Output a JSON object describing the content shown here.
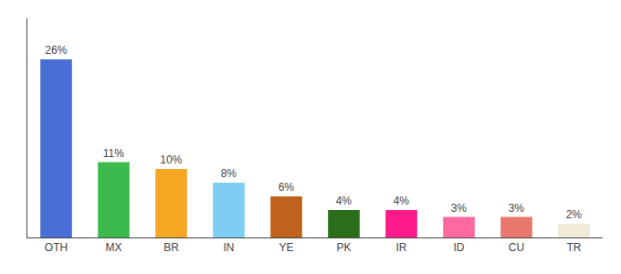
{
  "chart_data": {
    "type": "bar",
    "categories": [
      "OTH",
      "MX",
      "BR",
      "IN",
      "YE",
      "PK",
      "IR",
      "ID",
      "CU",
      "TR"
    ],
    "values": [
      26,
      11,
      10,
      8,
      6,
      4,
      4,
      3,
      3,
      2
    ],
    "value_labels": [
      "26%",
      "11%",
      "10%",
      "8%",
      "6%",
      "4%",
      "4%",
      "3%",
      "3%",
      "2%"
    ],
    "colors": [
      "#4a6fd4",
      "#3dba4e",
      "#f5a623",
      "#7ecef4",
      "#c0621b",
      "#2a6e1a",
      "#ff1a8c",
      "#ff69a0",
      "#e8786e",
      "#f0ead6"
    ],
    "ylim": [
      0,
      32
    ],
    "data_labels": true,
    "tick_labels": "x",
    "grid": false
  }
}
